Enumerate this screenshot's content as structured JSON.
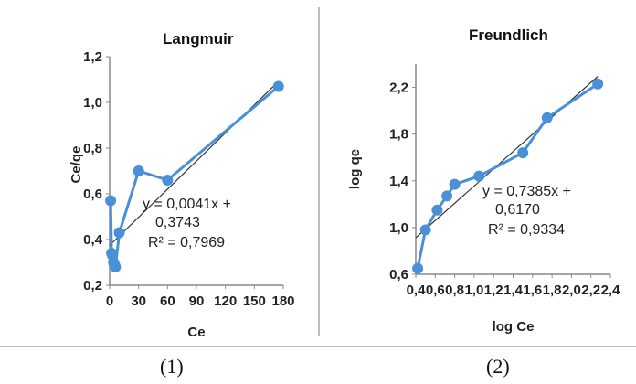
{
  "chart_data": [
    {
      "type": "scatter",
      "title": "Langmuir",
      "xlabel": "Ce",
      "ylabel": "Ce/qe",
      "xlim": [
        0,
        180
      ],
      "ylim": [
        0.2,
        1.2
      ],
      "x_ticks": [
        "0",
        "30",
        "60",
        "90",
        "120",
        "150",
        "180"
      ],
      "y_ticks": [
        "0,2",
        "0,4",
        "0,6",
        "0,8",
        "1,0",
        "1,2"
      ],
      "series": [
        {
          "color": "#4a90d9",
          "x": [
            1,
            2,
            3,
            4,
            5,
            6,
            10,
            30,
            60,
            175
          ],
          "y": [
            0.57,
            0.34,
            0.33,
            0.3,
            0.29,
            0.28,
            0.43,
            0.7,
            0.66,
            1.07
          ]
        }
      ],
      "trendline": {
        "slope": 0.0041,
        "intercept": 0.3743,
        "x_range": [
          0,
          175
        ]
      },
      "equation": "y = 0,0041x +",
      "equation2": "0,3743",
      "r2": "R² = 0,7969",
      "caption": "(1)"
    },
    {
      "type": "scatter",
      "title": "Freundlich",
      "xlabel": "log Ce",
      "ylabel": "log qe",
      "xlim": [
        0.4,
        2.4
      ],
      "ylim": [
        0.6,
        2.4
      ],
      "x_ticks": [
        "0,4",
        "0,6",
        "0,8",
        "1,0",
        "1,2",
        "1,4",
        "1,6",
        "1,8",
        "2,0",
        "2,2",
        "2,4"
      ],
      "y_ticks": [
        "0,6",
        "1,0",
        "1,4",
        "1,8",
        "2,2"
      ],
      "series": [
        {
          "color": "#4a90d9",
          "x": [
            0.42,
            0.5,
            0.62,
            0.72,
            0.8,
            1.05,
            1.5,
            1.75,
            2.27
          ],
          "y": [
            0.65,
            0.98,
            1.15,
            1.27,
            1.37,
            1.44,
            1.64,
            1.94,
            2.23
          ]
        }
      ],
      "trendline": {
        "slope": 0.7385,
        "intercept": 0.617,
        "x_range": [
          0.4,
          2.27
        ]
      },
      "equation": "y = 0,7385x +",
      "equation2": "0,6170",
      "r2": "R² = 0,9334",
      "caption": "(2)"
    }
  ]
}
